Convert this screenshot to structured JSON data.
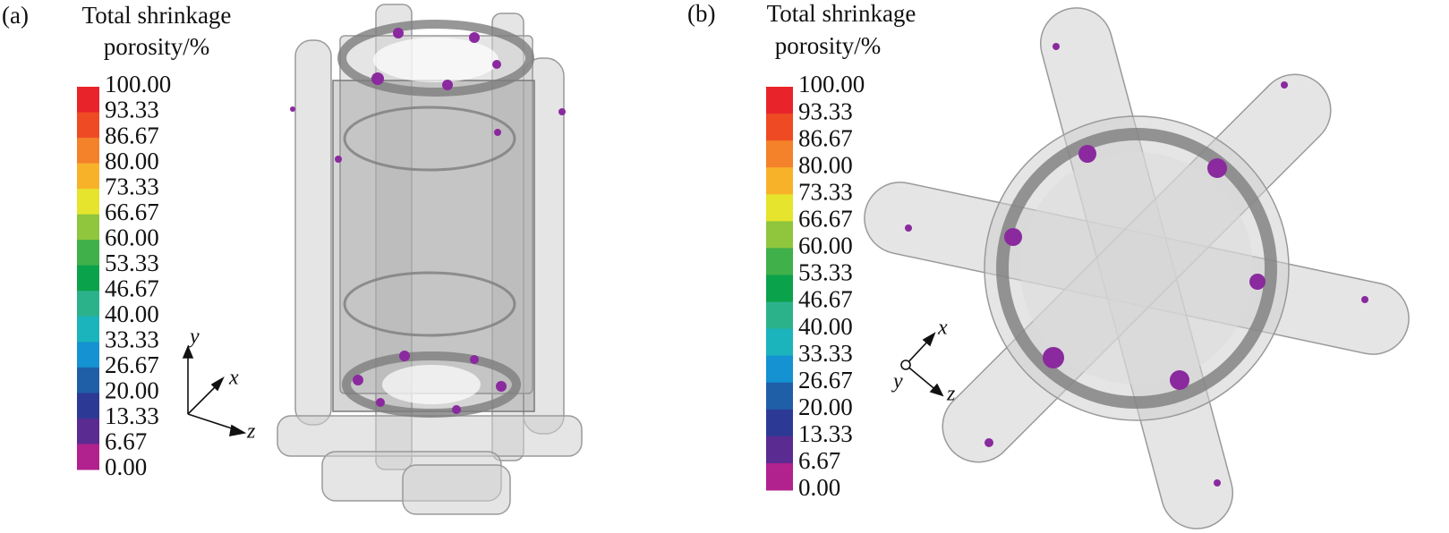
{
  "panels": [
    {
      "label": "(a)",
      "title_lines": [
        "Total shrinkage",
        "porosity/%"
      ],
      "legend": {
        "ticks": [
          "100.00",
          "93.33",
          "86.67",
          "80.00",
          "73.33",
          "66.67",
          "60.00",
          "53.33",
          "46.67",
          "40.00",
          "33.33",
          "26.67",
          "20.00",
          "13.33",
          "6.67",
          "0.00"
        ],
        "colors": [
          "#e8242a",
          "#ee4a24",
          "#f3822a",
          "#f8b22a",
          "#e6e42c",
          "#8fc63e",
          "#3fb04a",
          "#0aa24a",
          "#2bb28b",
          "#1bb4bd",
          "#1492d1",
          "#1f5fa8",
          "#2d3a95",
          "#5a2b90",
          "#b2228e"
        ]
      },
      "axes": [
        "y",
        "x",
        "z"
      ]
    },
    {
      "label": "(b)",
      "title_lines": [
        "Total shrinkage",
        "porosity/%"
      ],
      "legend": {
        "ticks": [
          "100.00",
          "93.33",
          "86.67",
          "80.00",
          "73.33",
          "66.67",
          "60.00",
          "53.33",
          "46.67",
          "40.00",
          "33.33",
          "26.67",
          "20.00",
          "13.33",
          "6.67",
          "0.00"
        ],
        "colors": [
          "#e8242a",
          "#ee4a24",
          "#f3822a",
          "#f8b22a",
          "#e6e42c",
          "#8fc63e",
          "#3fb04a",
          "#0aa24a",
          "#2bb28b",
          "#1bb4bd",
          "#1492d1",
          "#1f5fa8",
          "#2d3a95",
          "#5a2b90",
          "#b2228e"
        ]
      },
      "axes": [
        "x",
        "y",
        "z"
      ]
    }
  ]
}
